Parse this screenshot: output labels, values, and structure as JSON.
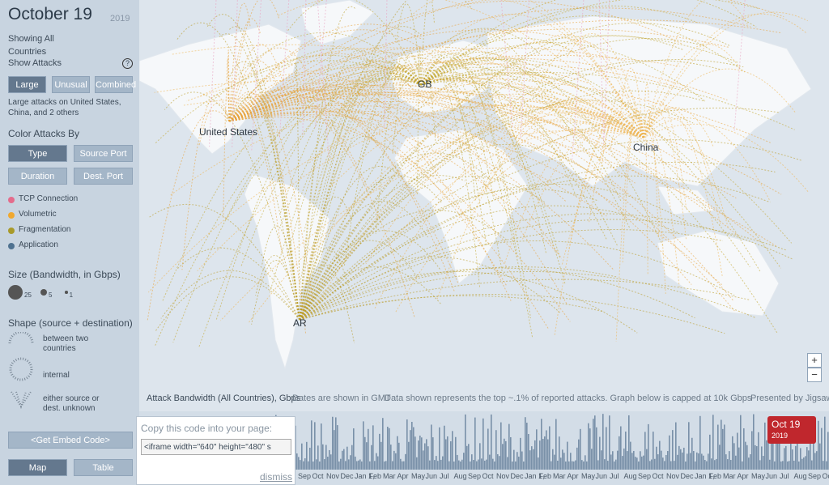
{
  "header": {
    "date": "October 19",
    "year": "2019",
    "showing": "Showing All Countries",
    "show_attacks": "Show Attacks",
    "help": "?"
  },
  "attack_buttons": [
    "Large",
    "Unusual",
    "Combined"
  ],
  "attack_note": "Large attacks on United States, China, and 2 others",
  "color_by": {
    "title": "Color Attacks By",
    "buttons": [
      "Type",
      "Source Port",
      "Duration",
      "Dest. Port"
    ]
  },
  "legend": [
    {
      "label": "TCP Connection",
      "color": "#e46c8c"
    },
    {
      "label": "Volumetric",
      "color": "#f0a830"
    },
    {
      "label": "Fragmentation",
      "color": "#a89a2a"
    },
    {
      "label": "Application",
      "color": "#4f7290"
    }
  ],
  "size": {
    "title": "Size (Bandwidth, in Gbps)",
    "values": [
      25,
      5,
      1
    ]
  },
  "shape": {
    "title": "Shape (source + destination)",
    "items": [
      "between two countries",
      "internal",
      "either source or dest. unknown"
    ]
  },
  "embed_button": "<Get Embed Code>",
  "view_buttons": [
    "Map",
    "Table"
  ],
  "zoom": [
    "+",
    "−"
  ],
  "map_labels": [
    "United States",
    "GB",
    "China",
    "AR"
  ],
  "timeline": {
    "title": "Attack Bandwidth (All Countries), Gbps",
    "gmt": "Dates are shown in GMT",
    "note": "Data shown represents the top ~.1% of reported attacks. Graph below is capped at 10k Gbps",
    "credit": "Presented by Jigsaw",
    "months": [
      "Sep",
      "Oct",
      "Nov",
      "Dec",
      "Jan 1,",
      "Feb",
      "Mar",
      "Apr",
      "May",
      "Jun",
      "Jul",
      "Aug"
    ],
    "badge": "Oct 19",
    "badge_year": "2019"
  },
  "embed_popup": {
    "title": "Copy this code into your page:",
    "code": "<iframe width=\"640\" height=\"480\"  s",
    "dismiss": "dismiss"
  }
}
